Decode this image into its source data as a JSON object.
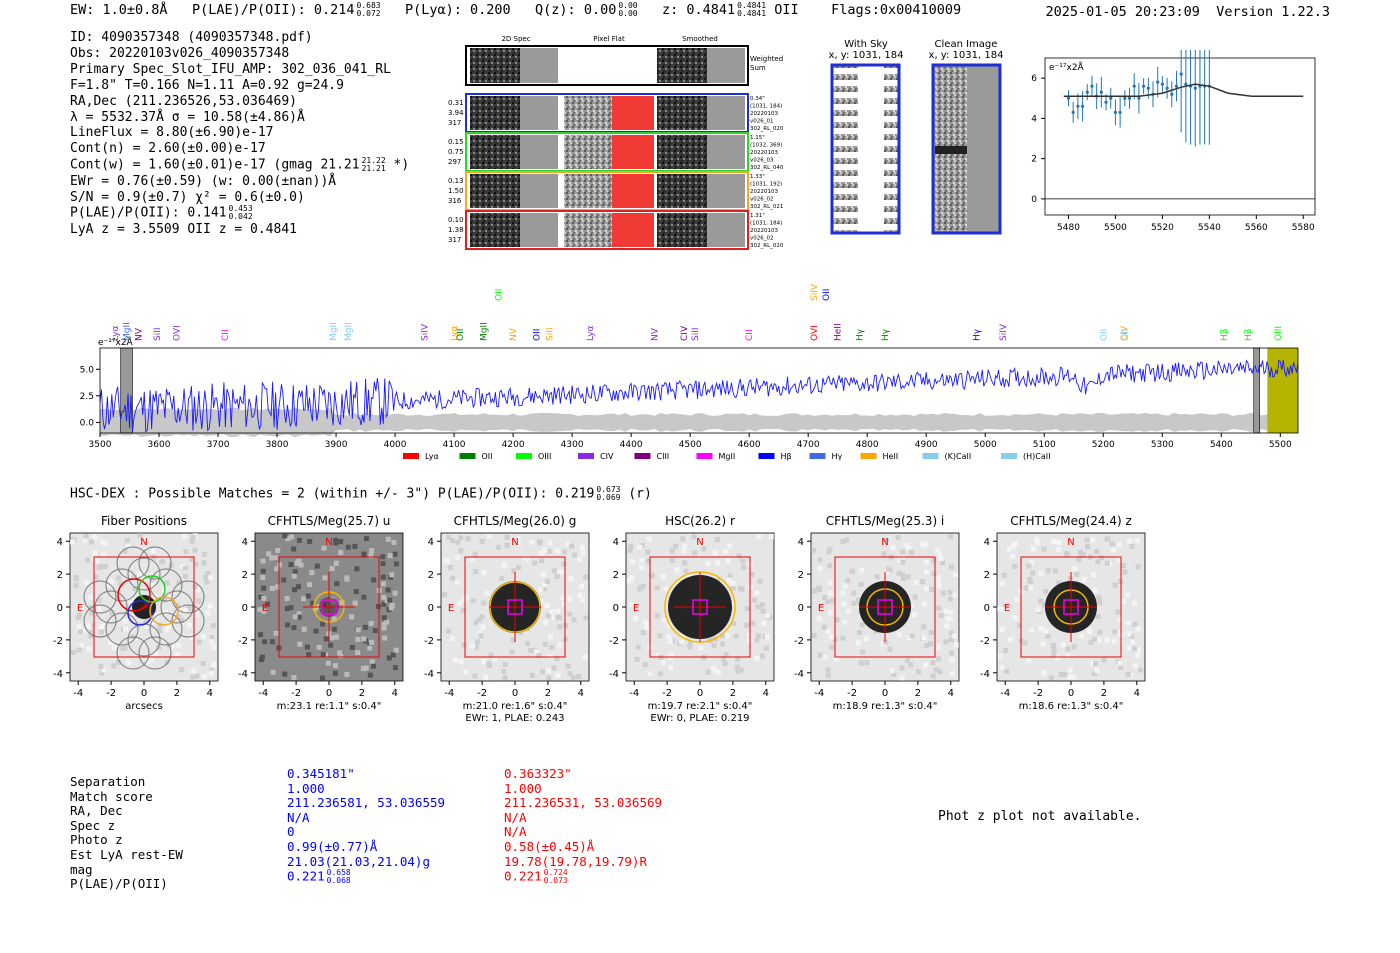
{
  "header": {
    "ew": "EW: 1.0±0.8Å",
    "plae_label": "P(LAE)/P(OII): 0.214",
    "plae_hi": "0.683",
    "plae_lo": "0.072",
    "plya": "P(Lyα): 0.200",
    "qz_label": "Q(z): 0.00",
    "qz_hi": "0.00",
    "qz_lo": "0.00",
    "z_label": "z: 0.4841",
    "z_hi": "0.4841",
    "z_lo": "0.4841",
    "z_line": "OII",
    "flags": "Flags:0x00410009",
    "timestamp": "2025-01-05 20:23:09",
    "version": "Version 1.22.3"
  },
  "info": {
    "id": "ID: 4090357348 (4090357348.pdf)",
    "obs": "Obs: 20220103v026_4090357348",
    "primary": "Primary Spec_Slot_IFU_AMP: 302_036_041_RL",
    "fwhm": "F=1.8\"  T=0.166  N=1.11  A=0.92  g=24.9",
    "radec": "RA,Dec (211.236526,53.036469)",
    "lambda": "λ = 5532.37Å   σ = 10.58(±4.86)Å",
    "lineflux": "LineFlux = 8.80(±6.90)e-17",
    "contn": "Cont(n) = 2.60(±0.00)e-17",
    "contw": "Cont(w) = 1.60(±0.01)e-17 (gmag 21.21",
    "contw_hi": "21.22",
    "contw_lo": "21.21",
    "contw_end": "*)",
    "ewr": "EWr = 0.76(±0.59) (w: 0.00(±nan))Å",
    "sn": "S/N = 0.9(±0.7)  χ² = 0.6(±0.0)",
    "plae": "P(LAE)/P(OII): 0.141",
    "plae_hi": "0.453",
    "plae_lo": "0.042",
    "lyaz": "LyA z = 3.5509  OII z = 0.4841"
  },
  "cutouts": {
    "col_headers": [
      "2D Spec",
      "Pixel Flat",
      "Smoothed"
    ],
    "weighted": [
      "Weighted",
      "Sum"
    ],
    "rows": [
      {
        "left": [
          "0.31",
          "3.94",
          "317"
        ],
        "right": [
          "0.34\"",
          "(1031, 184)",
          "20220103",
          "v026_01",
          "302_RL_020"
        ],
        "color": "#1f2fd6"
      },
      {
        "left": [
          "0.15",
          "0.75",
          "297"
        ],
        "right": [
          "1.15\"",
          "(1032, 369)",
          "20220103",
          "v026_03",
          "302_RL_040"
        ],
        "color": "#2ad62a"
      },
      {
        "left": [
          "0.13",
          "1.50",
          "316"
        ],
        "right": [
          "1.33\"",
          "(1031, 192)",
          "20220103",
          "v026_02",
          "302_RL_021"
        ],
        "color": "#f5a623"
      },
      {
        "left": [
          "0.10",
          "1.38",
          "317"
        ],
        "right": [
          "1.31\"",
          "(1031, 184)",
          "20220103",
          "v026_02",
          "302_RL_020"
        ],
        "color": "#e0201c"
      }
    ]
  },
  "sky": {
    "with_sky": "With Sky",
    "with_sky_xy": "x, y: 1031, 184",
    "clean": "Clean Image",
    "clean_xy": "x, y: 1031, 184"
  },
  "zoom_plot": {
    "ylabel": "e⁻¹⁷x2Å",
    "xticks": [
      "5480",
      "5500",
      "5520",
      "5540",
      "5560",
      "5580"
    ],
    "yticks": [
      "0",
      "2",
      "4",
      "6"
    ]
  },
  "full_spectrum": {
    "ylabel": "e⁻¹⁷x2Å",
    "xticks": [
      "3500",
      "3600",
      "3700",
      "3800",
      "3900",
      "4000",
      "4100",
      "4200",
      "4300",
      "4400",
      "4500",
      "4600",
      "4700",
      "4800",
      "4900",
      "5000",
      "5100",
      "5200",
      "5300",
      "5400",
      "5500"
    ],
    "yticks": [
      "0.0",
      "2.5",
      "5.0"
    ],
    "legend": [
      {
        "label": "Lyα",
        "color": "#ff0000"
      },
      {
        "label": "OII",
        "color": "#008000"
      },
      {
        "label": "OIII",
        "color": "#00ff00"
      },
      {
        "label": "CIV",
        "color": "#8a2be2"
      },
      {
        "label": "CIII",
        "color": "#800080"
      },
      {
        "label": "MgII",
        "color": "#ff00ff"
      },
      {
        "label": "Hβ",
        "color": "#0000ff"
      },
      {
        "label": "Hγ",
        "color": "#4169e1"
      },
      {
        "label": "HeII",
        "color": "#ffa500"
      },
      {
        "label": "(K)CaII",
        "color": "#87ceeb"
      },
      {
        "label": "(H)CaII",
        "color": "#87ceeb"
      }
    ],
    "line_marks": [
      {
        "x": 3525,
        "label": "Lyα",
        "color": "#8a2be2"
      },
      {
        "x": 3545,
        "label": "MgII",
        "color": "#4169e1"
      },
      {
        "x": 3565,
        "label": "NV",
        "color": "#800080"
      },
      {
        "x": 3597,
        "label": "SiII",
        "color": "#8a2be2"
      },
      {
        "x": 3630,
        "label": "OVI",
        "color": "#8a2be2"
      },
      {
        "x": 3712,
        "label": "CII",
        "color": "#ff00ff"
      },
      {
        "x": 3895,
        "label": "MgII",
        "color": "#87ceeb"
      },
      {
        "x": 3920,
        "label": "MgII",
        "color": "#87ceeb"
      },
      {
        "x": 4050,
        "label": "SiIV",
        "color": "#8a2be2"
      },
      {
        "x": 4100,
        "label": "Lyα",
        "color": "#ffa500"
      },
      {
        "x": 4110,
        "label": "OII",
        "color": "#008000"
      },
      {
        "x": 4150,
        "label": "MgII",
        "color": "#008000"
      },
      {
        "x": 4200,
        "label": "NV",
        "color": "#ffa500"
      },
      {
        "x": 4240,
        "label": "OII",
        "color": "#0000ff"
      },
      {
        "x": 4262,
        "label": "SiII",
        "color": "#ffa500"
      },
      {
        "x": 4330,
        "label": "Lyα",
        "color": "#8a2be2"
      },
      {
        "x": 4440,
        "label": "NV",
        "color": "#8a2be2"
      },
      {
        "x": 4490,
        "label": "CIV",
        "color": "#800080"
      },
      {
        "x": 4508,
        "label": "SiII",
        "color": "#8a2be2"
      },
      {
        "x": 4600,
        "label": "CII",
        "color": "#ff00ff"
      },
      {
        "x": 4710,
        "label": "OVI",
        "color": "#ff0000"
      },
      {
        "x": 4750,
        "label": "HeII",
        "color": "#800080"
      },
      {
        "x": 4787,
        "label": "Hγ",
        "color": "#008000"
      },
      {
        "x": 4830,
        "label": "Hγ",
        "color": "#008000"
      },
      {
        "x": 4985,
        "label": "Hγ",
        "color": "#0000ff"
      },
      {
        "x": 5030,
        "label": "SiIV",
        "color": "#8a2be2"
      },
      {
        "x": 5200,
        "label": "OII",
        "color": "#87ceeb"
      },
      {
        "x": 5235,
        "label": "CIV",
        "color": "#ffa500"
      },
      {
        "x": 5237,
        "label": "OII",
        "color": "#87ceeb"
      },
      {
        "x": 5405,
        "label": "Hβ",
        "color": "#00ff00"
      },
      {
        "x": 5445,
        "label": "Hβ",
        "color": "#00ff00"
      },
      {
        "x": 5496,
        "label": "OIII",
        "color": "#00ff00"
      }
    ],
    "upper_marks": [
      {
        "x": 4175,
        "label": "OII",
        "color": "#00ff00"
      },
      {
        "x": 4710,
        "label": "SiIV",
        "color": "#ffa500"
      },
      {
        "x": 4730,
        "label": "OII",
        "color": "#0000ff"
      }
    ]
  },
  "hsc": {
    "title": "HSC-DEX : Possible Matches = 2 (within +/- 3\")  P(LAE)/P(OII): 0.219",
    "plae_hi": "0.673",
    "plae_lo": "0.069",
    "plae_end": "(r)"
  },
  "stamps": [
    {
      "title": "Fiber Positions",
      "foot1": "arcsecs",
      "foot2": ""
    },
    {
      "title": "CFHTLS/Meg(25.7) u",
      "foot1": "m:23.1  re:1.1\"  s:0.4\"",
      "foot2": ""
    },
    {
      "title": "CFHTLS/Meg(26.0) g",
      "foot1": "m:21.0  re:1.6\"  s:0.4\"",
      "foot2": "EWr: 1, PLAE: 0.243"
    },
    {
      "title": "HSC(26.2) r",
      "foot1": "m:19.7  re:2.1\"  s:0.4\"",
      "foot2": "EWr: 0, PLAE: 0.219"
    },
    {
      "title": "CFHTLS/Meg(25.3) i",
      "foot1": "m:18.9  re:1.3\"  s:0.4\"",
      "foot2": ""
    },
    {
      "title": "CFHTLS/Meg(24.4) z",
      "foot1": "m:18.6  re:1.3\"  s:0.4\"",
      "foot2": ""
    }
  ],
  "stamp_axes": {
    "ticks": [
      "-4",
      "-2",
      "0",
      "2",
      "4"
    ],
    "north": "N",
    "east": "E"
  },
  "matches": {
    "labels": [
      "Separation",
      "Match score",
      "RA, Dec",
      "Spec z",
      "Photo z",
      "Est LyA rest-EW",
      "mag",
      "P(LAE)/P(OII)"
    ],
    "blue": [
      "0.345181\"",
      "1.000",
      "211.236581, 53.036559",
      "N/A",
      "0",
      "0.99(±0.77)Å",
      "21.03(21.03,21.04)g",
      "0.221"
    ],
    "blue_plae_hi": "0.658",
    "blue_plae_lo": "0.068",
    "red": [
      "0.363323\"",
      "1.000",
      "211.236531, 53.036569",
      "N/A",
      "N/A",
      "0.58(±0.45)Å",
      "19.78(19.78,19.79)R",
      "0.221"
    ],
    "red_plae_hi": "0.724",
    "red_plae_lo": "0.073",
    "blue_color": "#0000ff",
    "red_color": "#ff0000"
  },
  "phot_z": "Phot z plot not available.",
  "chart_data": [
    {
      "type": "scatter",
      "ylabel": "e⁻¹⁷x2Å",
      "xlim": [
        5470,
        5585
      ],
      "ylim": [
        -0.8,
        7.0
      ],
      "series": [
        {
          "points": [
            [
              5480,
              5.0
            ],
            [
              5482,
              4.3
            ],
            [
              5484,
              4.6
            ],
            [
              5486,
              4.6
            ],
            [
              5488,
              5.3
            ],
            [
              5490,
              5.6
            ],
            [
              5492,
              5.1
            ],
            [
              5494,
              5.3
            ],
            [
              5496,
              4.8
            ],
            [
              5498,
              5.0
            ],
            [
              5500,
              4.3
            ],
            [
              5502,
              4.3
            ],
            [
              5504,
              5.0
            ],
            [
              5506,
              5.0
            ],
            [
              5508,
              5.6
            ],
            [
              5510,
              5.0
            ],
            [
              5512,
              5.6
            ],
            [
              5514,
              5.5
            ],
            [
              5516,
              5.2
            ],
            [
              5518,
              5.8
            ],
            [
              5520,
              5.7
            ],
            [
              5522,
              5.5
            ],
            [
              5524,
              5.2
            ],
            [
              5526,
              5.6
            ],
            [
              5528,
              6.2
            ],
            [
              5530,
              5.7
            ],
            [
              5532,
              5.6
            ],
            [
              5534,
              5.5
            ],
            [
              5536,
              5.6
            ],
            [
              5538,
              5.6
            ],
            [
              5540,
              5.6
            ]
          ]
        },
        {
          "fit": [
            [
              5478,
              5.1
            ],
            [
              5510,
              5.1
            ],
            [
              5520,
              5.25
            ],
            [
              5528,
              5.55
            ],
            [
              5534,
              5.7
            ],
            [
              5540,
              5.6
            ],
            [
              5548,
              5.25
            ],
            [
              5558,
              5.1
            ],
            [
              5580,
              5.1
            ]
          ]
        }
      ]
    },
    {
      "type": "line",
      "ylabel": "e⁻¹⁷x2Å",
      "xlim": [
        3500,
        5530
      ],
      "ylim": [
        -1.0,
        7.0
      ],
      "xticks": [
        3500,
        3600,
        3700,
        3800,
        3900,
        4000,
        4100,
        4200,
        4300,
        4400,
        4500,
        4600,
        4700,
        4800,
        4900,
        5000,
        5100,
        5200,
        5300,
        5400,
        5500
      ],
      "yticks": [
        0.0,
        2.5,
        5.0
      ]
    }
  ]
}
